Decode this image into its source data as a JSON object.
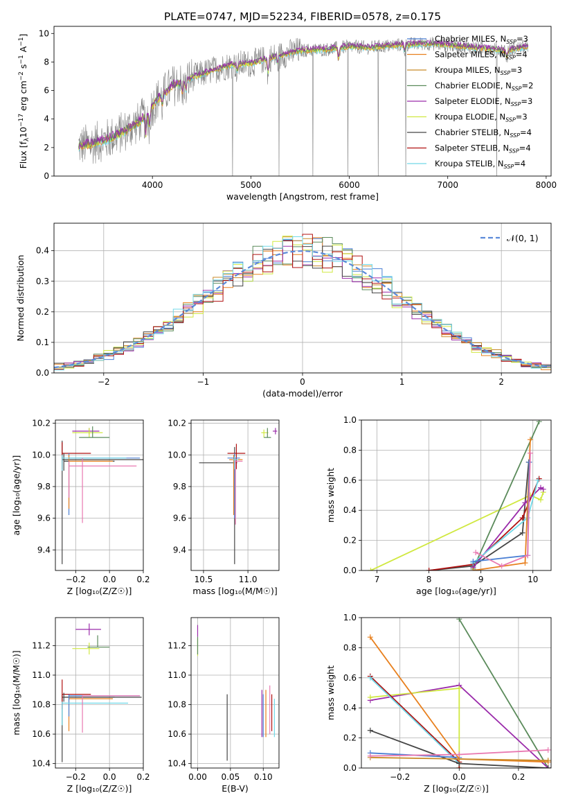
{
  "title": "PLATE=0747, MJD=52234, FIBERID=0578, z=0.175",
  "colors": {
    "chabrier_miles": "#4a7fd4",
    "salpeter_miles": "#e8801e",
    "kroupa_miles": "#c88a28",
    "chabrier_elodie": "#5a8a5a",
    "salpeter_elodie": "#9a2aaa",
    "kroupa_elodie": "#d0e840",
    "chabrier_stelib": "#444444",
    "salpeter_stelib": "#b01010",
    "kroupa_stelib": "#70d8e8",
    "pink": "#e878b0",
    "data": "#808080",
    "gauss": "#5b8ad9",
    "grid": "#b0b0b0"
  },
  "chart_data": [
    {
      "id": "spectrum",
      "type": "line",
      "xlabel": "wavelength [Angstrom, rest frame]",
      "ylabel_parts": [
        "Flux [f",
        "λ",
        "10",
        "−17",
        " erg cm",
        "−2",
        " s",
        "−1",
        " A",
        "−1",
        "]"
      ],
      "xlim": [
        3000,
        8050
      ],
      "ylim": [
        0,
        10.5
      ],
      "xticks": [
        4000,
        5000,
        6000,
        7000,
        8000
      ],
      "yticks": [
        0,
        2,
        4,
        6,
        8,
        10
      ],
      "continuum": {
        "x": [
          3250,
          3400,
          3550,
          3700,
          3850,
          3950,
          4050,
          4200,
          4400,
          4600,
          4800,
          5000,
          5200,
          5500,
          5800,
          6000,
          6200,
          6500,
          6800,
          7000,
          7300,
          7600,
          7800
        ],
        "y": [
          2.1,
          2.3,
          2.6,
          3.1,
          3.7,
          4.4,
          5.4,
          6.3,
          6.9,
          7.4,
          7.8,
          7.9,
          8.3,
          8.8,
          8.9,
          9.1,
          9.0,
          9.2,
          9.3,
          9.2,
          9.0,
          8.8,
          9.1
        ]
      },
      "legend": [
        {
          "label": "Chabrier MILES, N",
          "sub": "SSP",
          "tail": "=3",
          "color_key": "chabrier_miles"
        },
        {
          "label": "Salpeter MILES, N",
          "sub": "SSP",
          "tail": "=4",
          "color_key": "salpeter_miles"
        },
        {
          "label": "Kroupa MILES, N",
          "sub": "SSP",
          "tail": "=3",
          "color_key": "kroupa_miles"
        },
        {
          "label": "Chabrier ELODIE, N",
          "sub": "SSP",
          "tail": "=2",
          "color_key": "chabrier_elodie"
        },
        {
          "label": "Salpeter ELODIE, N",
          "sub": "SSP",
          "tail": "=3",
          "color_key": "salpeter_elodie"
        },
        {
          "label": "Kroupa ELODIE, N",
          "sub": "SSP",
          "tail": "=3",
          "color_key": "kroupa_elodie"
        },
        {
          "label": "Chabrier STELIB, N",
          "sub": "SSP",
          "tail": "=4",
          "color_key": "chabrier_stelib"
        },
        {
          "label": "Salpeter STELIB, N",
          "sub": "SSP",
          "tail": "=4",
          "color_key": "salpeter_stelib"
        },
        {
          "label": "Kroupa STELIB, N",
          "sub": "SSP",
          "tail": "=4",
          "color_key": "kroupa_stelib"
        }
      ]
    },
    {
      "id": "residuals",
      "type": "bar",
      "xlabel": "(data-model)/error",
      "ylabel": "Normed distribution",
      "xlim": [
        -2.5,
        2.5
      ],
      "ylim": [
        0,
        0.49
      ],
      "xticks": [
        -2,
        -1,
        0,
        1,
        2
      ],
      "yticks": [
        0.0,
        0.1,
        0.2,
        0.3,
        0.4
      ],
      "bin_width": 0.1,
      "gauss_label": "𝒩(0, 1)"
    },
    {
      "id": "age_vs_Z",
      "type": "scatter",
      "xlabel": "Z [log₁₀(Z/Z☉)]",
      "ylabel": "age  [log₁₀(age/yr)]",
      "xlim": [
        -0.32,
        0.2
      ],
      "ylim": [
        9.27,
        10.22
      ],
      "xticks": [
        -0.2,
        0.0,
        0.2
      ],
      "yticks": [
        9.4,
        9.6,
        9.8,
        10.0,
        10.2
      ],
      "points": [
        {
          "x": -0.28,
          "y": 9.97,
          "ex": [
            0.0,
            0.48
          ],
          "ey": [
            0.66,
            0.12
          ],
          "color_key": "chabrier_stelib"
        },
        {
          "x": -0.28,
          "y": 10.01,
          "ex": [
            0.0,
            0.17
          ],
          "ey": [
            0.1,
            0.07
          ],
          "color_key": "salpeter_stelib"
        },
        {
          "x": -0.27,
          "y": 9.96,
          "ex": [
            0.0,
            0.3
          ],
          "ey": [
            0.06,
            0.05
          ],
          "color_key": "chabrier_stelib"
        },
        {
          "x": -0.24,
          "y": 9.98,
          "ex": [
            0.0,
            0.42
          ],
          "ey": [
            0.36,
            0.03
          ],
          "color_key": "chabrier_miles"
        },
        {
          "x": -0.24,
          "y": 9.96,
          "ex": [
            0.0,
            0.26
          ],
          "ey": [
            0.3,
            0.04
          ],
          "color_key": "salpeter_miles"
        },
        {
          "x": -0.24,
          "y": 9.93,
          "ex": [
            0.0,
            0.4
          ],
          "ey": [
            0.2,
            0.03
          ],
          "color_key": "pink"
        },
        {
          "x": -0.28,
          "y": 9.98,
          "ex": [
            0.0,
            0.38
          ],
          "ey": [
            0.08,
            0.02
          ],
          "color_key": "kroupa_stelib"
        },
        {
          "x": -0.16,
          "y": 9.98,
          "ex": [
            0.0,
            0.0
          ],
          "ey": [
            0.41,
            0.0
          ],
          "color_key": "pink"
        },
        {
          "x": -0.12,
          "y": 10.15,
          "ex": [
            0.1,
            0.06
          ],
          "ey": [
            0.02,
            0.02
          ],
          "color_key": "salpeter_elodie"
        },
        {
          "x": -0.12,
          "y": 10.14,
          "ex": [
            0.1,
            0.08
          ],
          "ey": [
            0.03,
            0.03
          ],
          "color_key": "kroupa_elodie"
        },
        {
          "x": -0.1,
          "y": 10.11,
          "ex": [
            0.08,
            0.1
          ],
          "ey": [
            0.0,
            0.07
          ],
          "color_key": "chabrier_elodie"
        }
      ]
    },
    {
      "id": "age_vs_mass",
      "type": "scatter",
      "xlabel": "mass [log₁₀(M/M☉)]",
      "ylabel": "",
      "xlim": [
        10.36,
        11.35
      ],
      "ylim": [
        9.27,
        10.22
      ],
      "xticks": [
        10.5,
        11.0
      ],
      "yticks": [
        9.4,
        9.6,
        9.8,
        10.0,
        10.2
      ],
      "points": [
        {
          "x": 10.85,
          "y": 9.95,
          "ex": [
            0.4,
            0.03
          ],
          "ey": [
            0.64,
            0.1
          ],
          "color_key": "chabrier_stelib"
        },
        {
          "x": 10.87,
          "y": 10.01,
          "ex": [
            0.1,
            0.1
          ],
          "ey": [
            0.1,
            0.06
          ],
          "color_key": "salpeter_stelib"
        },
        {
          "x": 10.84,
          "y": 9.97,
          "ex": [
            0.05,
            0.1
          ],
          "ey": [
            0.35,
            0.03
          ],
          "color_key": "salpeter_miles"
        },
        {
          "x": 10.85,
          "y": 9.98,
          "ex": [
            0.08,
            0.06
          ],
          "ey": [
            0.38,
            0.03
          ],
          "color_key": "chabrier_miles"
        },
        {
          "x": 10.86,
          "y": 9.96,
          "ex": [
            0.02,
            0.08
          ],
          "ey": [
            0.4,
            0.02
          ],
          "color_key": "pink"
        },
        {
          "x": 10.85,
          "y": 9.97,
          "ex": [
            0.02,
            0.04
          ],
          "ey": [
            0.06,
            0.02
          ],
          "color_key": "kroupa_stelib"
        },
        {
          "x": 11.31,
          "y": 10.15,
          "ex": [
            0.03,
            0.02
          ],
          "ey": [
            0.02,
            0.02
          ],
          "color_key": "salpeter_elodie"
        },
        {
          "x": 11.18,
          "y": 10.14,
          "ex": [
            0.03,
            0.05
          ],
          "ey": [
            0.03,
            0.02
          ],
          "color_key": "kroupa_elodie"
        },
        {
          "x": 11.22,
          "y": 10.11,
          "ex": [
            0.04,
            0.04
          ],
          "ey": [
            0.0,
            0.06
          ],
          "color_key": "chabrier_elodie"
        }
      ]
    },
    {
      "id": "weight_vs_age",
      "type": "line",
      "xlabel": "age  [log₁₀(age/yr)]",
      "ylabel": "mass weight",
      "xlim": [
        6.7,
        10.35
      ],
      "ylim": [
        0,
        1.0
      ],
      "xticks": [
        7,
        8,
        9,
        10
      ],
      "yticks": [
        0.0,
        0.2,
        0.4,
        0.6,
        0.8,
        1.0
      ],
      "series": [
        {
          "color_key": "kroupa_elodie",
          "x": [
            6.88,
            9.95,
            10.15,
            10.2
          ],
          "y": [
            0.0,
            0.5,
            0.47,
            0.52
          ]
        },
        {
          "color_key": "chabrier_stelib",
          "x": [
            8.0,
            8.85,
            9.8,
            9.92
          ],
          "y": [
            0.0,
            0.03,
            0.25,
            0.72
          ]
        },
        {
          "color_key": "salpeter_stelib",
          "x": [
            8.0,
            8.85,
            9.8,
            10.12
          ],
          "y": [
            0.0,
            0.04,
            0.35,
            0.61
          ]
        },
        {
          "color_key": "chabrier_elodie",
          "x": [
            8.85,
            10.12
          ],
          "y": [
            0.01,
            0.99
          ]
        },
        {
          "color_key": "salpeter_elodie",
          "x": [
            8.85,
            9.85,
            10.15,
            10.2
          ],
          "y": [
            0.02,
            0.45,
            0.55,
            0.54
          ]
        },
        {
          "color_key": "kroupa_stelib",
          "x": [
            8.85,
            9.9,
            10.1
          ],
          "y": [
            0.05,
            0.35,
            0.6
          ]
        },
        {
          "color_key": "salpeter_miles",
          "x": [
            8.85,
            9.85,
            9.95
          ],
          "y": [
            0.0,
            0.05,
            0.87
          ]
        },
        {
          "color_key": "chabrier_miles",
          "x": [
            8.85,
            9.9,
            9.93
          ],
          "y": [
            0.06,
            0.1,
            0.72
          ]
        },
        {
          "color_key": "pink",
          "x": [
            8.9,
            9.4,
            9.9,
            9.95
          ],
          "y": [
            0.12,
            0.03,
            0.1,
            0.78
          ]
        }
      ]
    },
    {
      "id": "mass_vs_Z",
      "type": "scatter",
      "xlabel": "Z [log₁₀(Z/Z☉)]",
      "ylabel": "mass [log₁₀(M/M☉)]",
      "xlim": [
        -0.32,
        0.2
      ],
      "ylim": [
        10.37,
        11.39
      ],
      "xticks": [
        -0.2,
        0.0,
        0.2
      ],
      "yticks": [
        10.4,
        10.6,
        10.8,
        11.0,
        11.2
      ],
      "points": [
        {
          "x": -0.28,
          "y": 10.85,
          "ex": [
            0.0,
            0.47
          ],
          "ey": [
            0.44,
            0.02
          ],
          "color_key": "chabrier_stelib"
        },
        {
          "x": -0.28,
          "y": 10.87,
          "ex": [
            0.0,
            0.17
          ],
          "ey": [
            0.1,
            0.1
          ],
          "color_key": "salpeter_stelib"
        },
        {
          "x": -0.27,
          "y": 10.85,
          "ex": [
            0.0,
            0.3
          ],
          "ey": [
            0.03,
            0.03
          ],
          "color_key": "chabrier_stelib"
        },
        {
          "x": -0.24,
          "y": 10.84,
          "ex": [
            0.0,
            0.26
          ],
          "ey": [
            0.22,
            0.02
          ],
          "color_key": "salpeter_miles"
        },
        {
          "x": -0.24,
          "y": 10.86,
          "ex": [
            0.0,
            0.42
          ],
          "ey": [
            0.14,
            0.01
          ],
          "color_key": "chabrier_miles"
        },
        {
          "x": -0.28,
          "y": 10.81,
          "ex": [
            0.0,
            0.39
          ],
          "ey": [
            0.15,
            0.01
          ],
          "color_key": "kroupa_stelib"
        },
        {
          "x": -0.16,
          "y": 10.86,
          "ex": [
            0.0,
            0.34
          ],
          "ey": [
            0.25,
            0.0
          ],
          "color_key": "pink"
        },
        {
          "x": -0.12,
          "y": 11.31,
          "ex": [
            0.08,
            0.07
          ],
          "ey": [
            0.04,
            0.04
          ],
          "color_key": "salpeter_elodie"
        },
        {
          "x": -0.12,
          "y": 11.18,
          "ex": [
            0.1,
            0.06
          ],
          "ey": [
            0.04,
            0.04
          ],
          "color_key": "kroupa_elodie"
        },
        {
          "x": -0.07,
          "y": 11.19,
          "ex": [
            0.06,
            0.07
          ],
          "ey": [
            0.0,
            0.08
          ],
          "color_key": "chabrier_elodie"
        }
      ]
    },
    {
      "id": "mass_vs_EBV",
      "type": "scatter",
      "xlabel": "E(B-V)",
      "ylabel": "",
      "xlim": [
        -0.01,
        0.124
      ],
      "ylim": [
        10.37,
        11.39
      ],
      "xticks": [
        0.0,
        0.05,
        0.1
      ],
      "yticks": [
        10.4,
        10.6,
        10.8,
        11.0,
        11.2
      ],
      "points": [
        {
          "x": 0.045,
          "y": 10.65,
          "ex": [
            0,
            0
          ],
          "ey": [
            0.23,
            0.22
          ],
          "color_key": "chabrier_stelib"
        },
        {
          "x": 0.098,
          "y": 10.75,
          "ex": [
            0,
            0
          ],
          "ey": [
            0.17,
            0.15
          ],
          "color_key": "salpeter_elodie"
        },
        {
          "x": 0.1,
          "y": 10.75,
          "ex": [
            0,
            0
          ],
          "ey": [
            0.17,
            0.12
          ],
          "color_key": "chabrier_miles"
        },
        {
          "x": 0.104,
          "y": 10.76,
          "ex": [
            0,
            0
          ],
          "ey": [
            0.18,
            0.14
          ],
          "color_key": "salpeter_miles"
        },
        {
          "x": 0.11,
          "y": 10.77,
          "ex": [
            0,
            0
          ],
          "ey": [
            0.17,
            0.16
          ],
          "color_key": "pink"
        },
        {
          "x": 0.113,
          "y": 10.75,
          "ex": [
            0,
            0
          ],
          "ey": [
            0.13,
            0.12
          ],
          "color_key": "salpeter_stelib"
        },
        {
          "x": 0.117,
          "y": 10.72,
          "ex": [
            0,
            0
          ],
          "ey": [
            0.14,
            0.12
          ],
          "color_key": "kroupa_stelib"
        },
        {
          "x": 0.0,
          "y": 11.3,
          "ex": [
            0,
            0
          ],
          "ey": [
            0.04,
            0.04
          ],
          "color_key": "salpeter_elodie"
        },
        {
          "x": 0.0,
          "y": 11.19,
          "ex": [
            0,
            0
          ],
          "ey": [
            0.06,
            0.06
          ],
          "color_key": "kroupa_elodie"
        },
        {
          "x": 0.0,
          "y": 11.2,
          "ex": [
            0,
            0
          ],
          "ey": [
            0.06,
            0.06
          ],
          "color_key": "chabrier_elodie"
        }
      ]
    },
    {
      "id": "weight_vs_Z",
      "type": "line",
      "xlabel": "Z [log₁₀(Z/Z☉)]",
      "ylabel": "mass weight",
      "xlim": [
        -0.33,
        0.31
      ],
      "ylim": [
        0,
        1.0
      ],
      "xticks": [
        -0.2,
        0.0,
        0.2
      ],
      "yticks": [
        0.0,
        0.2,
        0.4,
        0.6,
        0.8,
        1.0
      ],
      "series": [
        {
          "color_key": "chabrier_elodie",
          "x": [
            0.0,
            0.3
          ],
          "y": [
            0.99,
            0.0
          ]
        },
        {
          "color_key": "salpeter_elodie",
          "x": [
            -0.3,
            0.0,
            0.3
          ],
          "y": [
            0.45,
            0.55,
            0.0
          ]
        },
        {
          "color_key": "kroupa_elodie",
          "x": [
            -0.3,
            0.0,
            0.0
          ],
          "y": [
            0.47,
            0.53,
            0.0
          ]
        },
        {
          "color_key": "salpeter_stelib",
          "x": [
            -0.3,
            0.0,
            0.0
          ],
          "y": [
            0.61,
            0.04,
            0.0
          ]
        },
        {
          "color_key": "kroupa_stelib",
          "x": [
            -0.3,
            0.0
          ],
          "y": [
            0.6,
            0.03
          ]
        },
        {
          "color_key": "chabrier_stelib",
          "x": [
            -0.3,
            0.0,
            0.3
          ],
          "y": [
            0.25,
            0.03,
            0.0
          ]
        },
        {
          "color_key": "chabrier_miles",
          "x": [
            -0.3,
            0.0
          ],
          "y": [
            0.1,
            0.07
          ]
        },
        {
          "color_key": "salpeter_miles",
          "x": [
            -0.3,
            0.0,
            0.3
          ],
          "y": [
            0.87,
            0.06,
            0.04
          ]
        },
        {
          "color_key": "kroupa_miles",
          "x": [
            -0.3,
            0.3
          ],
          "y": [
            0.07,
            0.05
          ]
        },
        {
          "color_key": "pink",
          "x": [
            -0.3,
            0.0,
            0.3
          ],
          "y": [
            0.08,
            0.09,
            0.12
          ]
        }
      ]
    }
  ]
}
